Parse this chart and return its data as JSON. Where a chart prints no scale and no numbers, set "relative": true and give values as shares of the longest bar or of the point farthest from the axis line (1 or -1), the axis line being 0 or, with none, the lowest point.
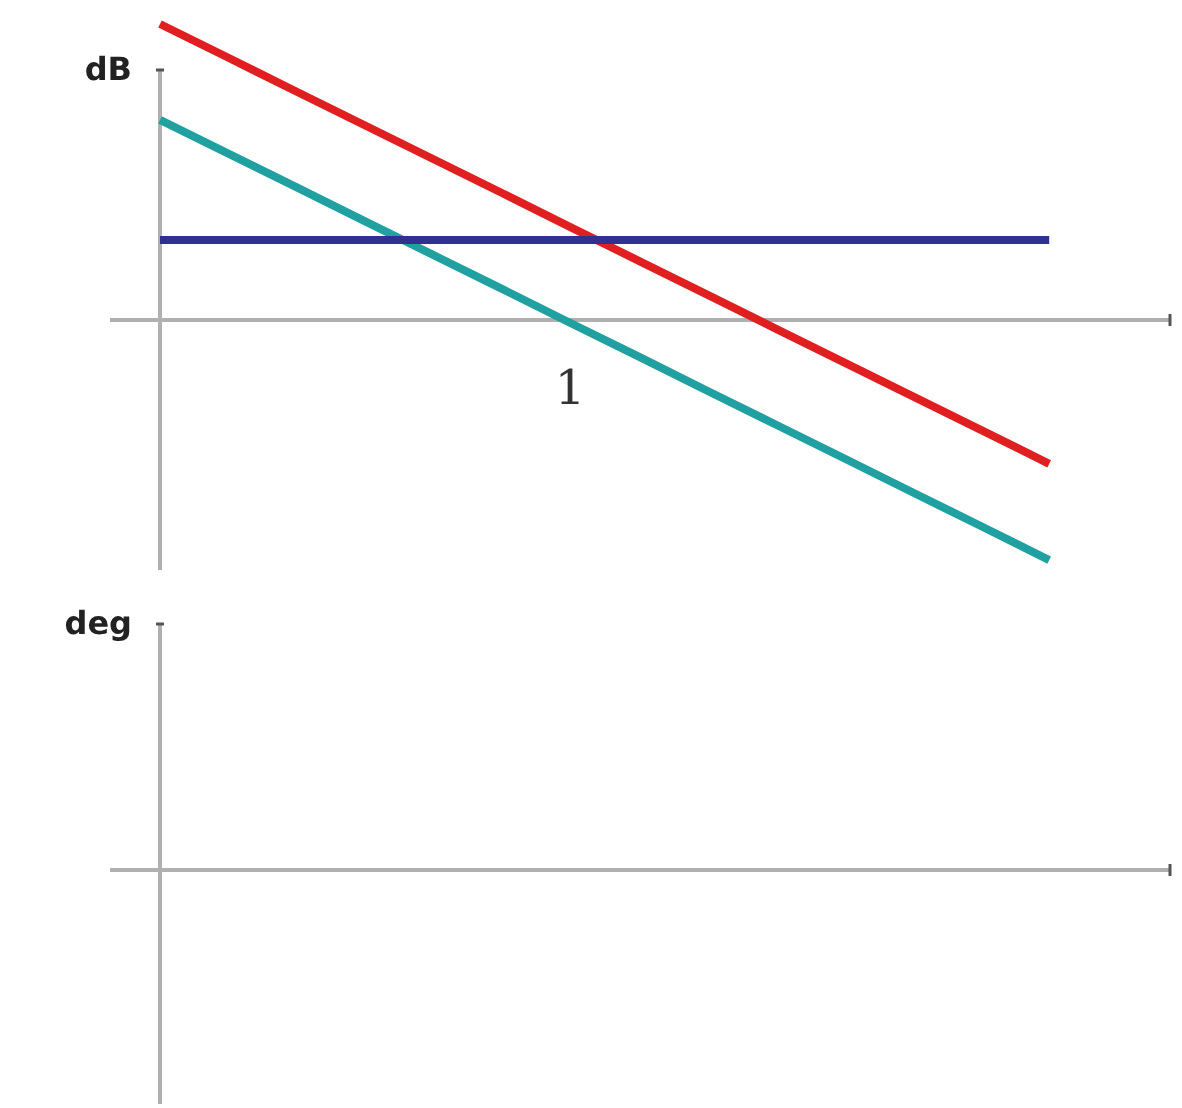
{
  "chart_data": [
    {
      "type": "line",
      "ylabel": "dB",
      "relative": true,
      "categories": [
        null,
        null,
        null,
        null,
        null,
        null,
        null,
        null,
        null,
        null,
        null,
        null,
        null,
        null
      ],
      "annotations": [
        "1"
      ],
      "series": [
        {
          "color": "#e02020",
          "values": [
            1,
            0.886,
            0.771,
            0.657,
            0.543,
            0.429,
            0.314,
            0.2,
            0.086,
            -0.029,
            -0.143,
            -0.257,
            -0.371,
            -0.486
          ]
        },
        {
          "color": "#20a0a0",
          "values": [
            0.676,
            0.562,
            0.448,
            0.333,
            0.219,
            0.105,
            -0.01,
            -0.124,
            -0.239,
            -0.353,
            -0.467,
            -0.582,
            -0.696,
            -0.811
          ]
        },
        {
          "color": "#303090",
          "values": [
            0.27,
            0.27,
            0.27,
            0.27,
            0.27,
            0.27,
            0.27,
            0.27,
            0.27,
            0.27,
            0.27,
            0.27,
            0.27,
            0.27
          ]
        }
      ]
    },
    {
      "type": "other",
      "ylabel": "deg"
    }
  ]
}
